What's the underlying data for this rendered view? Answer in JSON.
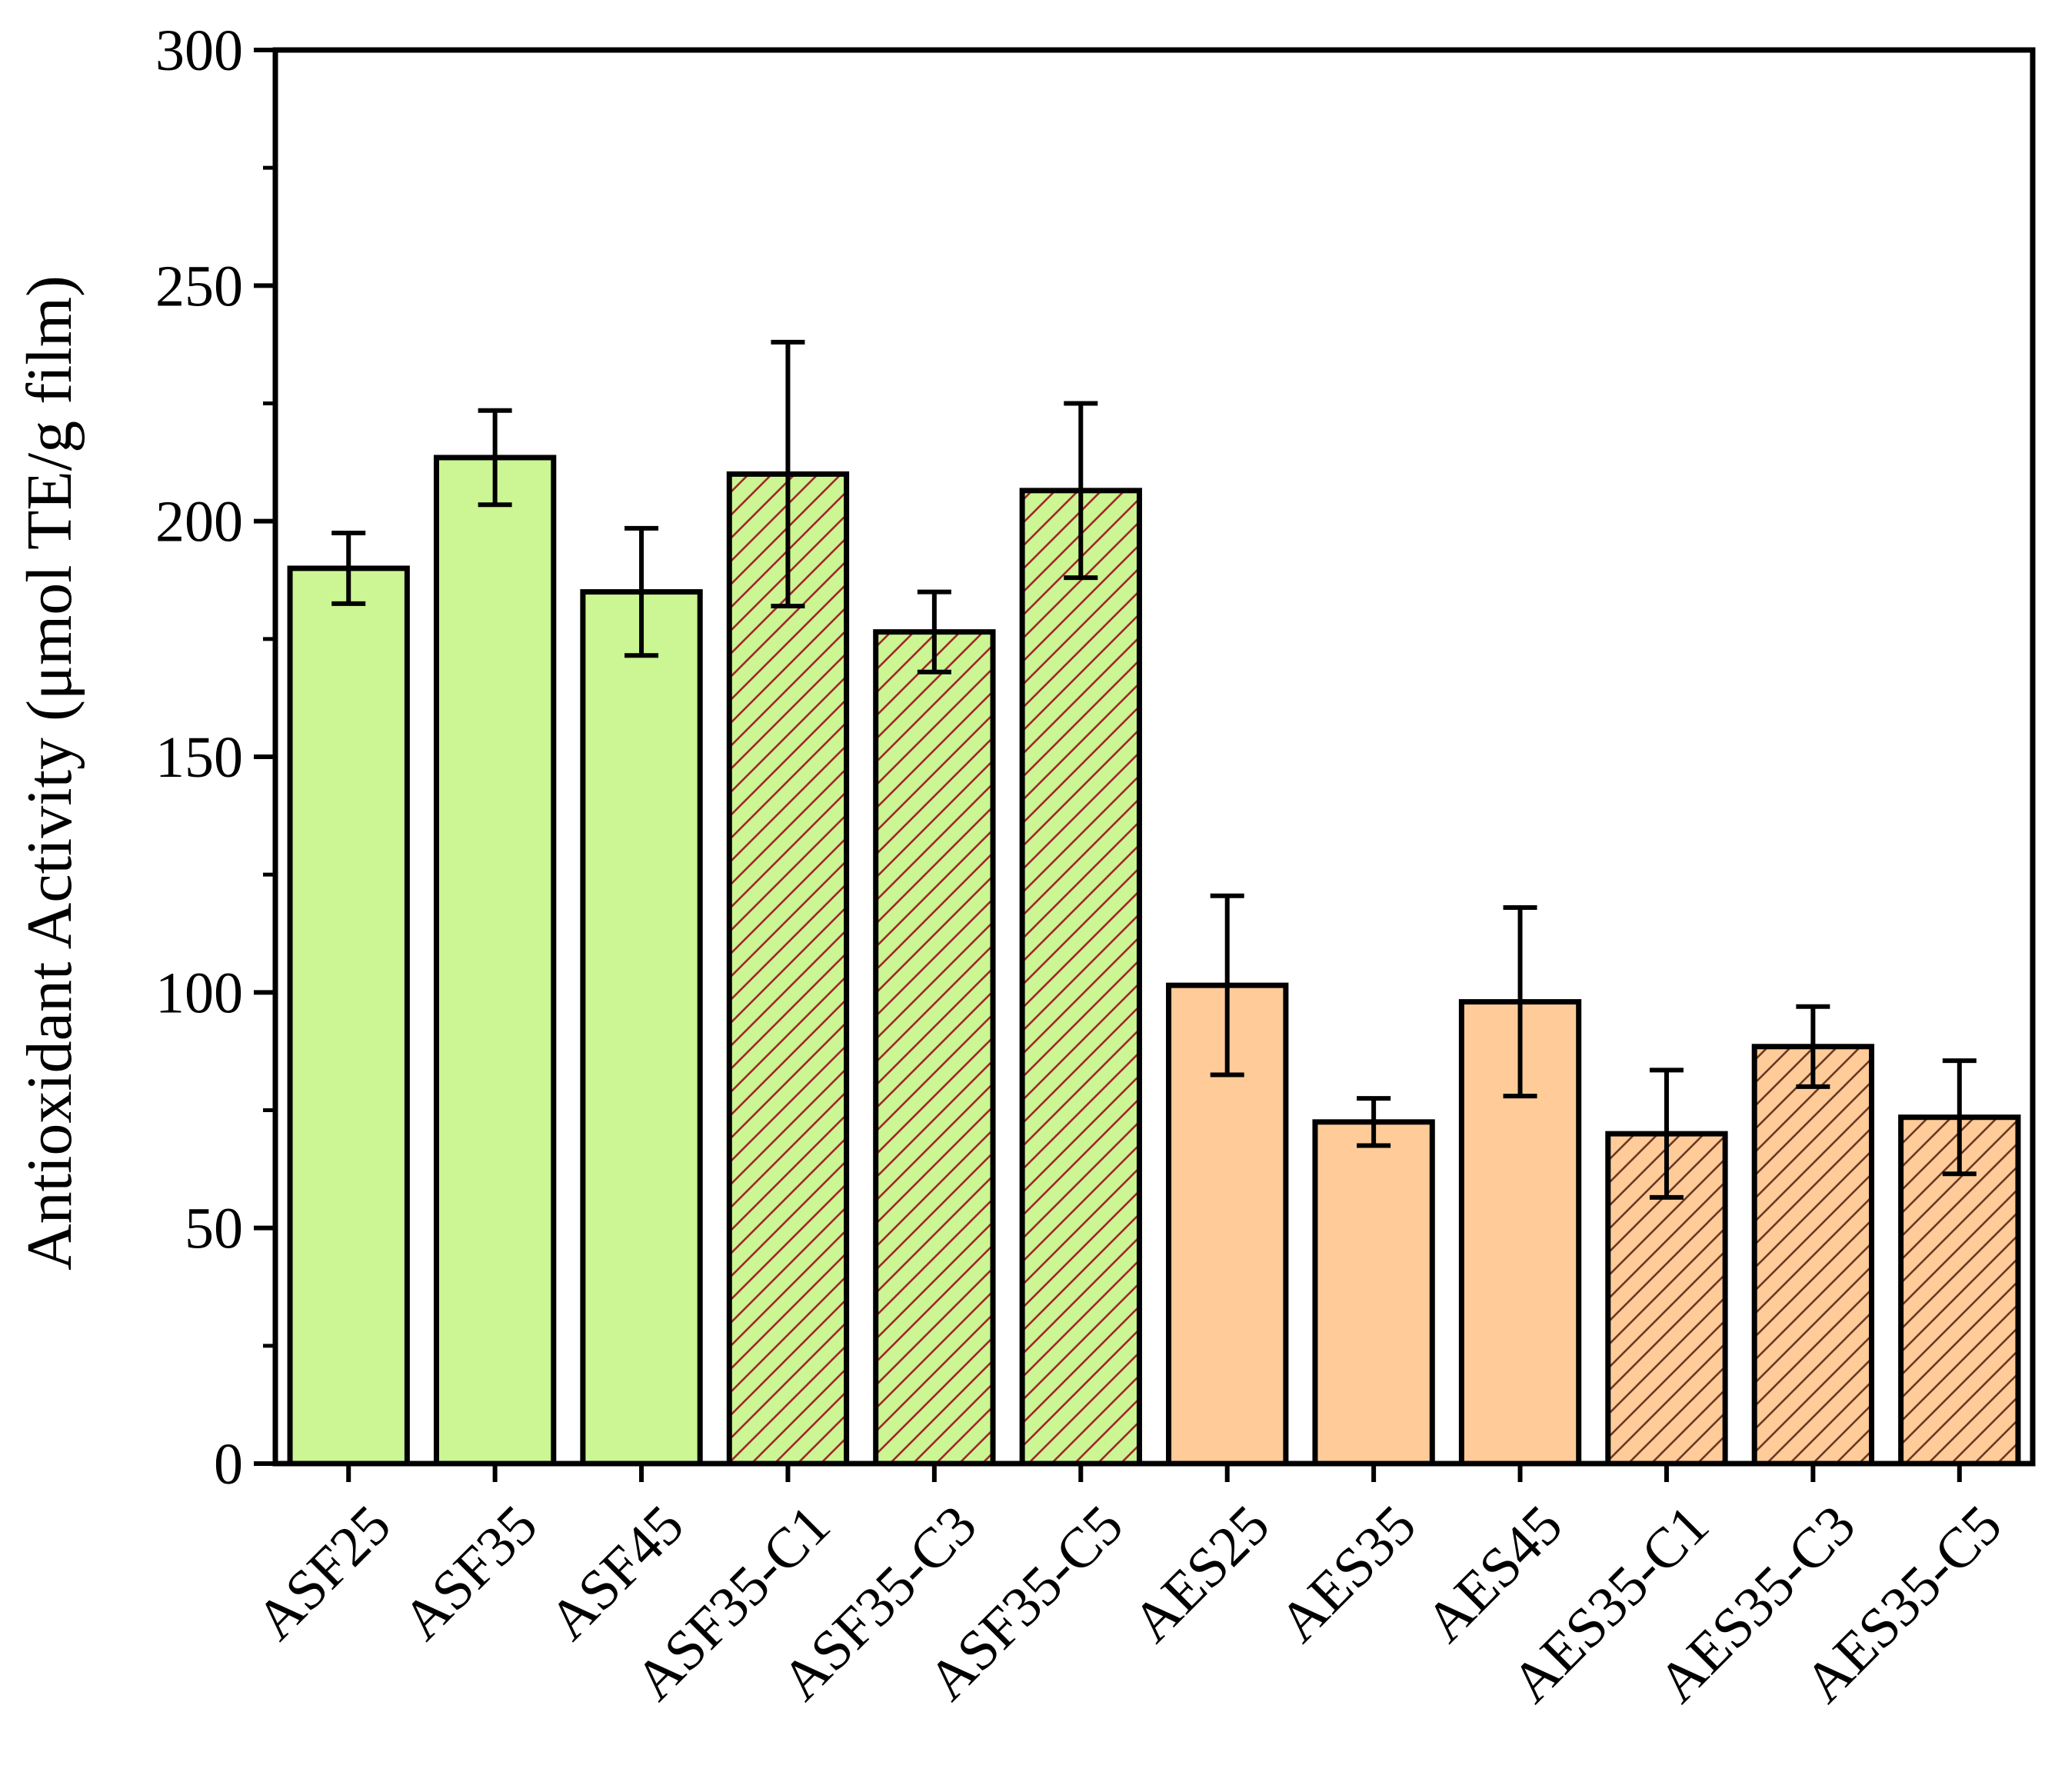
{
  "chart_data": {
    "type": "bar",
    "title": "",
    "xlabel": "",
    "ylabel": "Antioxidant Activity (μmol TE/g film)",
    "ylim": [
      0,
      300
    ],
    "yticks": [
      0,
      50,
      100,
      150,
      200,
      250,
      300
    ],
    "ytick_labels": [
      "0",
      "50",
      "100",
      "150",
      "200",
      "250",
      "300"
    ],
    "grid": false,
    "legend": "none",
    "categories": [
      "ASF25",
      "ASF35",
      "ASF45",
      "ASF35-C1",
      "ASF35-C3",
      "ASF35-C5",
      "AES25",
      "AES35",
      "AES45",
      "AES35-C1",
      "AES35-C3",
      "AES35-C5"
    ],
    "values": [
      190,
      213.5,
      185,
      210,
      176.5,
      206.5,
      101.5,
      72.5,
      98,
      70,
      88.5,
      73.5
    ],
    "errors": [
      7.5,
      10,
      13.5,
      28,
      8.5,
      18.5,
      19,
      5,
      20,
      13.5,
      8.5,
      12
    ],
    "bar_colors": [
      "#ccf593",
      "#ccf593",
      "#ccf593",
      "#ccf593",
      "#ccf593",
      "#ccf593",
      "#ffcc99",
      "#ffcc99",
      "#ffcc99",
      "#ffcc99",
      "#ffcc99",
      "#ffcc99"
    ],
    "hatched": [
      false,
      false,
      false,
      true,
      true,
      true,
      false,
      false,
      false,
      true,
      true,
      true
    ],
    "hatch_colors": [
      "#a0282c",
      "#a0282c",
      "#a0282c",
      "#a0282c",
      "#a0282c",
      "#a0282c",
      "#6b3a24",
      "#6b3a24",
      "#6b3a24",
      "#6b3a24",
      "#6b3a24",
      "#6b3a24"
    ]
  }
}
